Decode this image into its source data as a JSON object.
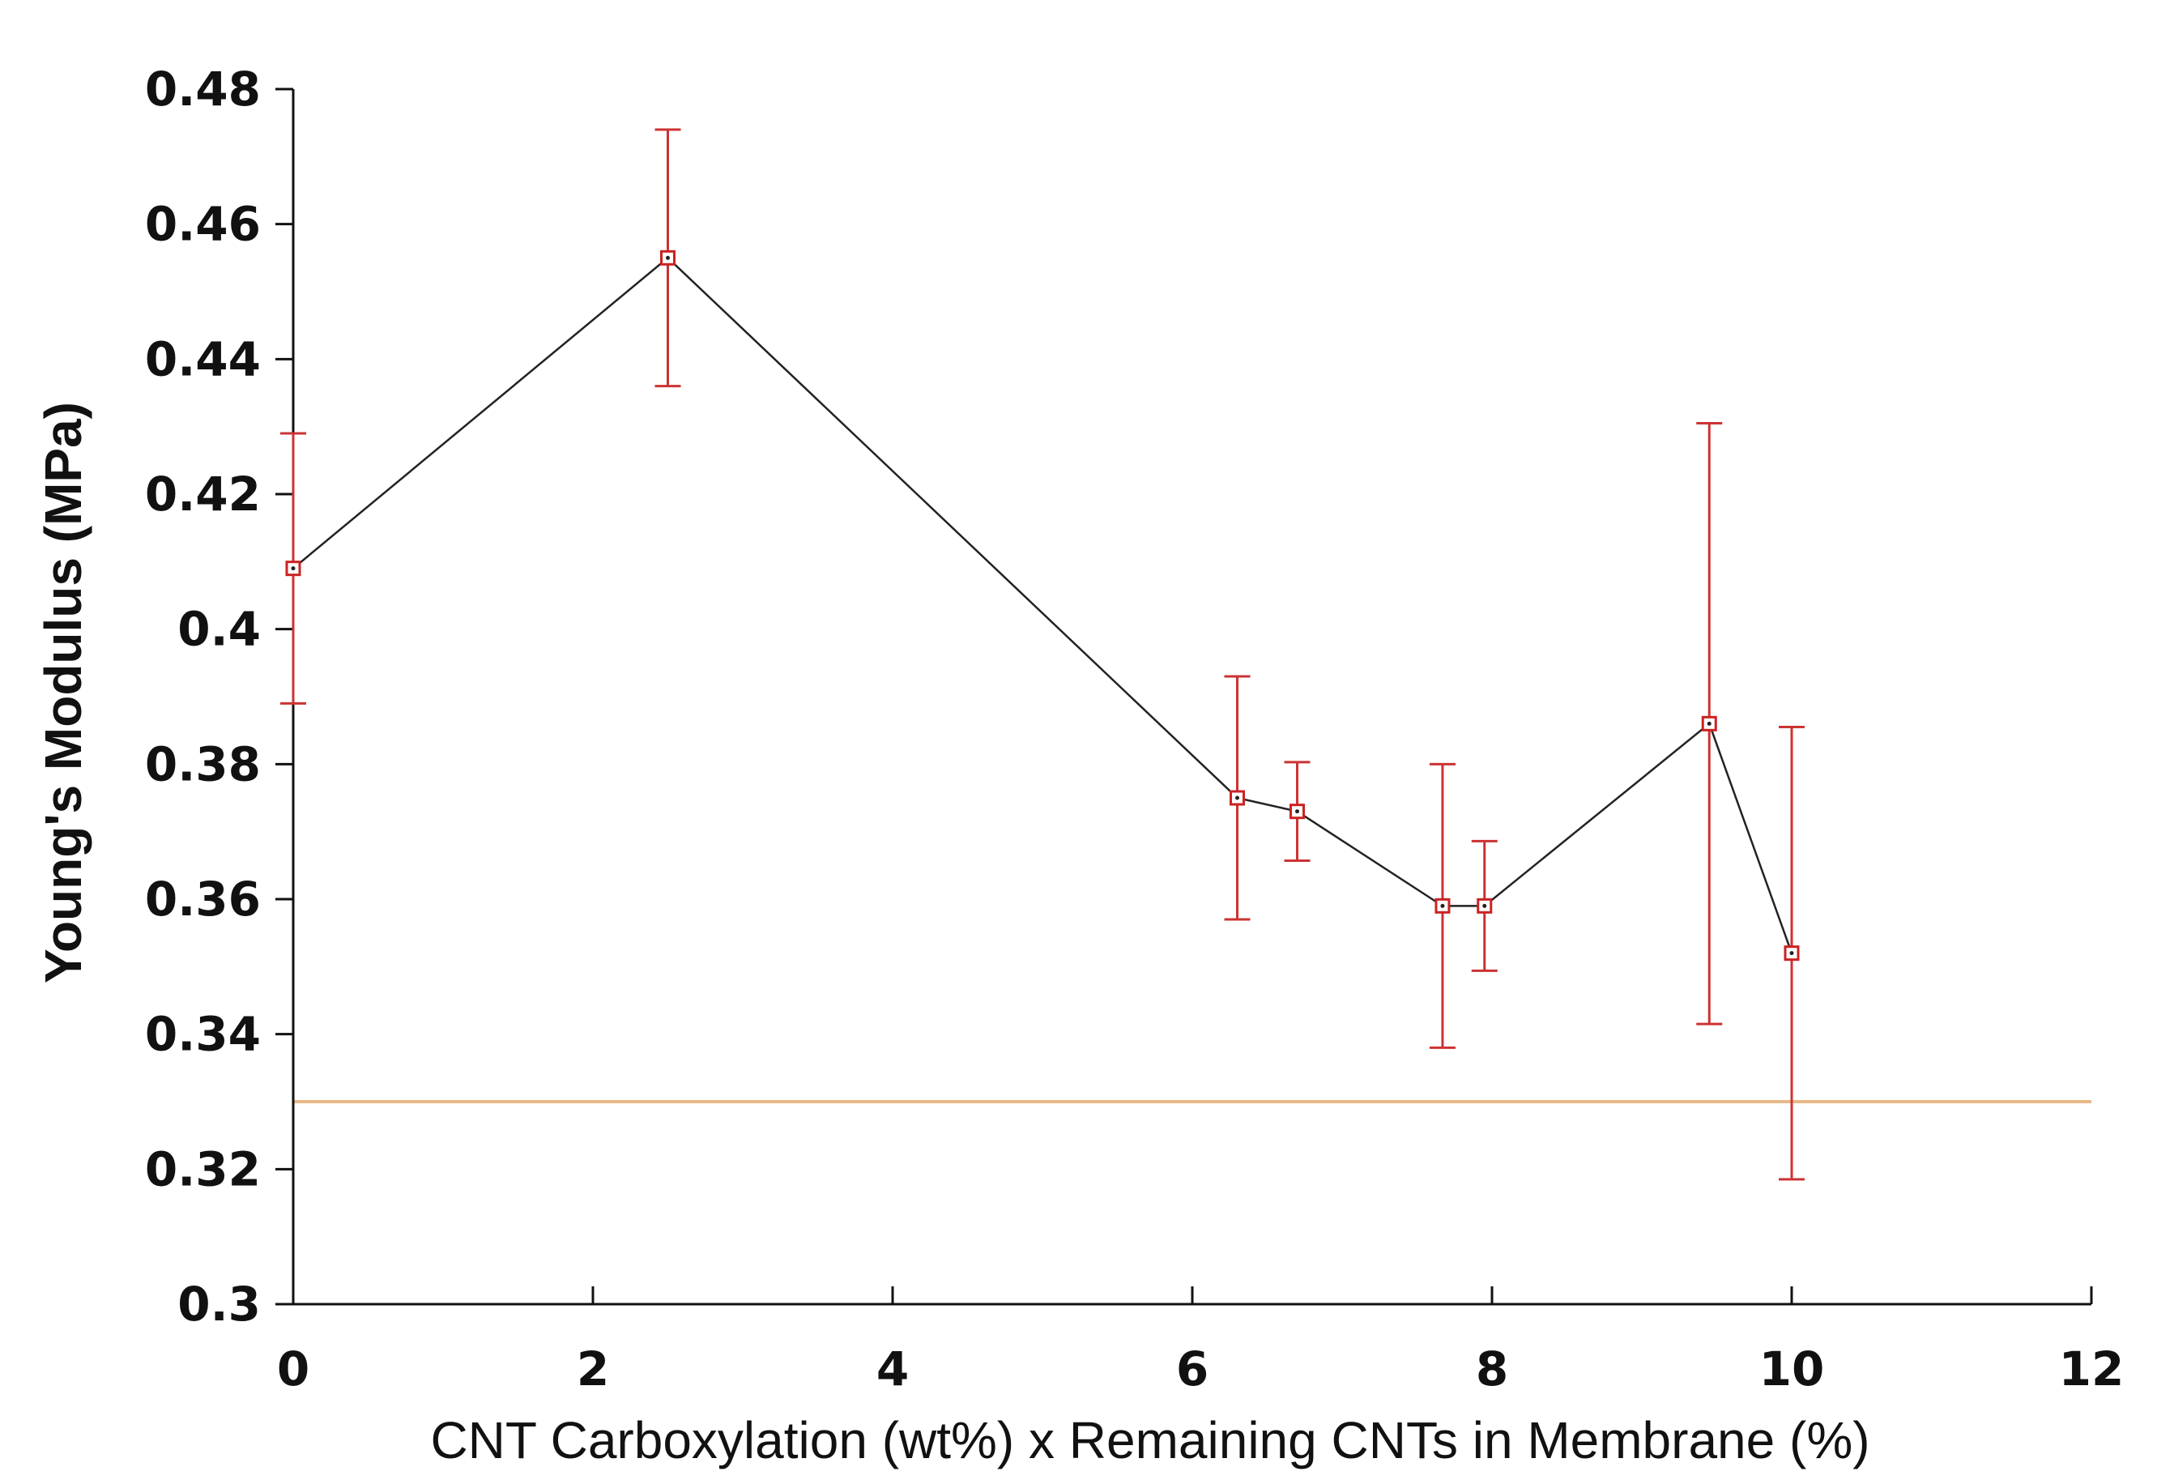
{
  "chart_data": {
    "type": "line",
    "title": "",
    "xlabel": "CNT Carboxylation (wt%) x Remaining CNTs in Membrane (%)",
    "ylabel": "Young's Modulus (MPa)",
    "xlim": [
      0,
      12
    ],
    "ylim": [
      0.3,
      0.48
    ],
    "xticks": [
      0,
      2,
      4,
      6,
      8,
      10,
      12
    ],
    "yticks": [
      0.3,
      0.32,
      0.34,
      0.36,
      0.38,
      0.4,
      0.42,
      0.44,
      0.46,
      0.48
    ],
    "ytick_labels": [
      "0.3",
      "0.32",
      "0.34",
      "0.36",
      "0.38",
      "0.4",
      "0.42",
      "0.44",
      "0.46",
      "0.48"
    ],
    "grid": false,
    "series": [
      {
        "name": "Young's Modulus",
        "line_color": "#222222",
        "marker_color": "#cc2222",
        "error_color": "#cc3333",
        "x": [
          0,
          2.5,
          6.3,
          6.7,
          7.67,
          7.95,
          9.45,
          10.0
        ],
        "y": [
          0.409,
          0.455,
          0.375,
          0.373,
          0.359,
          0.359,
          0.386,
          0.352
        ],
        "yerr": [
          0.02,
          0.019,
          0.018,
          0.0073,
          0.021,
          0.0096,
          0.0445,
          0.0335
        ]
      }
    ],
    "reference_line": {
      "y": 0.33,
      "color": "#e8b887"
    }
  }
}
